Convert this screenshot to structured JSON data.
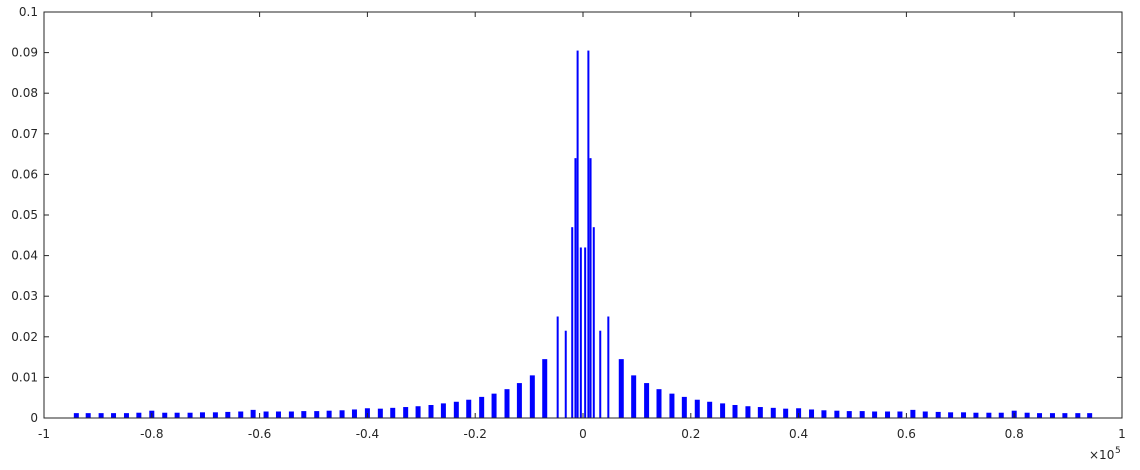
{
  "chart_data": {
    "type": "bar",
    "title": "",
    "xlabel": "",
    "ylabel": "",
    "xlim": [
      -1,
      1
    ],
    "ylim": [
      0,
      0.1
    ],
    "x_exponent_label": "×10",
    "x_exponent_power": "5",
    "x_ticks": [
      {
        "value": -1,
        "label": "-1"
      },
      {
        "value": -0.8,
        "label": "-0.8"
      },
      {
        "value": -0.6,
        "label": "-0.6"
      },
      {
        "value": -0.4,
        "label": "-0.4"
      },
      {
        "value": -0.2,
        "label": "-0.2"
      },
      {
        "value": 0,
        "label": "0"
      },
      {
        "value": 0.2,
        "label": "0.2"
      },
      {
        "value": 0.4,
        "label": "0.4"
      },
      {
        "value": 0.6,
        "label": "0.6"
      },
      {
        "value": 0.8,
        "label": "0.8"
      },
      {
        "value": 1,
        "label": "1"
      }
    ],
    "y_ticks": [
      {
        "value": 0,
        "label": "0"
      },
      {
        "value": 0.01,
        "label": "0.01"
      },
      {
        "value": 0.02,
        "label": "0.02"
      },
      {
        "value": 0.03,
        "label": "0.03"
      },
      {
        "value": 0.04,
        "label": "0.04"
      },
      {
        "value": 0.05,
        "label": "0.05"
      },
      {
        "value": 0.06,
        "label": "0.06"
      },
      {
        "value": 0.07,
        "label": "0.07"
      },
      {
        "value": 0.08,
        "label": "0.08"
      },
      {
        "value": 0.09,
        "label": "0.09"
      },
      {
        "value": 0.1,
        "label": "0.1"
      }
    ],
    "grid": false,
    "series": [
      {
        "color": "#0000ff",
        "points": [
          {
            "x": -0.94,
            "y": 0.0012
          },
          {
            "x": -0.918,
            "y": 0.0012
          },
          {
            "x": -0.894,
            "y": 0.0012
          },
          {
            "x": -0.871,
            "y": 0.0012
          },
          {
            "x": -0.847,
            "y": 0.0012
          },
          {
            "x": -0.824,
            "y": 0.0013
          },
          {
            "x": -0.8,
            "y": 0.0018
          },
          {
            "x": -0.776,
            "y": 0.0013
          },
          {
            "x": -0.753,
            "y": 0.0013
          },
          {
            "x": -0.729,
            "y": 0.0013
          },
          {
            "x": -0.706,
            "y": 0.0014
          },
          {
            "x": -0.682,
            "y": 0.0014
          },
          {
            "x": -0.659,
            "y": 0.0015
          },
          {
            "x": -0.635,
            "y": 0.0016
          },
          {
            "x": -0.612,
            "y": 0.002
          },
          {
            "x": -0.588,
            "y": 0.0016
          },
          {
            "x": -0.565,
            "y": 0.0016
          },
          {
            "x": -0.541,
            "y": 0.0016
          },
          {
            "x": -0.518,
            "y": 0.0017
          },
          {
            "x": -0.494,
            "y": 0.0017
          },
          {
            "x": -0.471,
            "y": 0.0018
          },
          {
            "x": -0.447,
            "y": 0.0019
          },
          {
            "x": -0.424,
            "y": 0.0021
          },
          {
            "x": -0.4,
            "y": 0.0024
          },
          {
            "x": -0.376,
            "y": 0.0023
          },
          {
            "x": -0.353,
            "y": 0.0025
          },
          {
            "x": -0.329,
            "y": 0.0027
          },
          {
            "x": -0.306,
            "y": 0.0029
          },
          {
            "x": -0.282,
            "y": 0.0032
          },
          {
            "x": -0.259,
            "y": 0.0036
          },
          {
            "x": -0.235,
            "y": 0.004
          },
          {
            "x": -0.212,
            "y": 0.0045
          },
          {
            "x": -0.188,
            "y": 0.0052
          },
          {
            "x": -0.165,
            "y": 0.006
          },
          {
            "x": -0.141,
            "y": 0.0071
          },
          {
            "x": -0.118,
            "y": 0.0086
          },
          {
            "x": -0.094,
            "y": 0.0105
          },
          {
            "x": -0.071,
            "y": 0.0145
          },
          {
            "x": -0.047,
            "y": 0.025
          },
          {
            "x": -0.032,
            "y": 0.0215
          },
          {
            "x": -0.02,
            "y": 0.047
          },
          {
            "x": -0.014,
            "y": 0.064
          },
          {
            "x": -0.01,
            "y": 0.0905
          },
          {
            "x": -0.004,
            "y": 0.042
          },
          {
            "x": 0.004,
            "y": 0.042
          },
          {
            "x": 0.01,
            "y": 0.0905
          },
          {
            "x": 0.014,
            "y": 0.064
          },
          {
            "x": 0.02,
            "y": 0.047
          },
          {
            "x": 0.032,
            "y": 0.0215
          },
          {
            "x": 0.047,
            "y": 0.025
          },
          {
            "x": 0.071,
            "y": 0.0145
          },
          {
            "x": 0.094,
            "y": 0.0105
          },
          {
            "x": 0.118,
            "y": 0.0086
          },
          {
            "x": 0.141,
            "y": 0.0071
          },
          {
            "x": 0.165,
            "y": 0.006
          },
          {
            "x": 0.188,
            "y": 0.0052
          },
          {
            "x": 0.212,
            "y": 0.0045
          },
          {
            "x": 0.235,
            "y": 0.004
          },
          {
            "x": 0.259,
            "y": 0.0036
          },
          {
            "x": 0.282,
            "y": 0.0032
          },
          {
            "x": 0.306,
            "y": 0.0029
          },
          {
            "x": 0.329,
            "y": 0.0027
          },
          {
            "x": 0.353,
            "y": 0.0025
          },
          {
            "x": 0.376,
            "y": 0.0023
          },
          {
            "x": 0.4,
            "y": 0.0024
          },
          {
            "x": 0.424,
            "y": 0.0021
          },
          {
            "x": 0.447,
            "y": 0.0019
          },
          {
            "x": 0.471,
            "y": 0.0018
          },
          {
            "x": 0.494,
            "y": 0.0017
          },
          {
            "x": 0.518,
            "y": 0.0017
          },
          {
            "x": 0.541,
            "y": 0.0016
          },
          {
            "x": 0.565,
            "y": 0.0016
          },
          {
            "x": 0.588,
            "y": 0.0016
          },
          {
            "x": 0.612,
            "y": 0.002
          },
          {
            "x": 0.635,
            "y": 0.0016
          },
          {
            "x": 0.659,
            "y": 0.0015
          },
          {
            "x": 0.682,
            "y": 0.0014
          },
          {
            "x": 0.706,
            "y": 0.0014
          },
          {
            "x": 0.729,
            "y": 0.0013
          },
          {
            "x": 0.753,
            "y": 0.0013
          },
          {
            "x": 0.776,
            "y": 0.0013
          },
          {
            "x": 0.8,
            "y": 0.0018
          },
          {
            "x": 0.824,
            "y": 0.0013
          },
          {
            "x": 0.847,
            "y": 0.0012
          },
          {
            "x": 0.871,
            "y": 0.0012
          },
          {
            "x": 0.894,
            "y": 0.0012
          },
          {
            "x": 0.918,
            "y": 0.0012
          },
          {
            "x": 0.94,
            "y": 0.0012
          }
        ]
      }
    ]
  }
}
